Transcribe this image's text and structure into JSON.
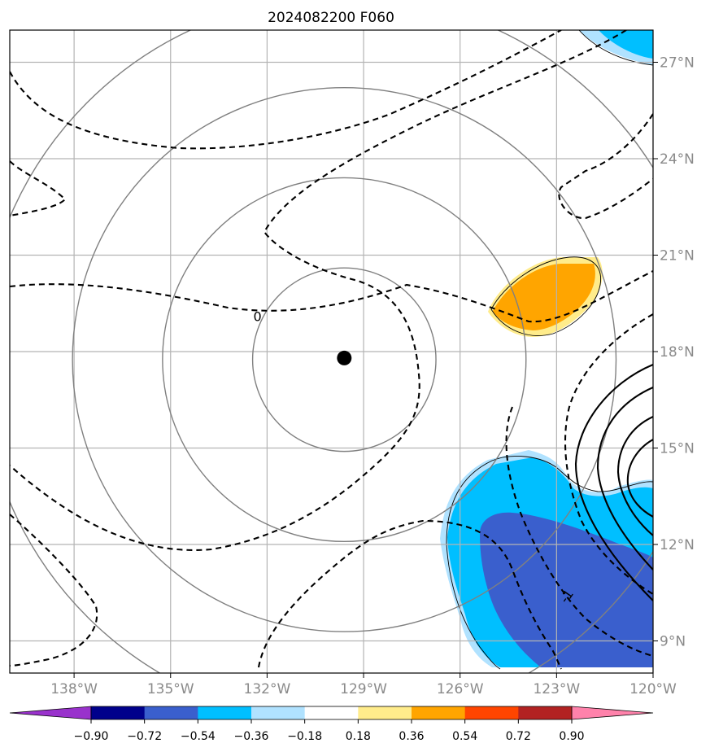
{
  "title": "2024082200 F060",
  "map": {
    "lon_range": [
      -140.0,
      -120.0
    ],
    "lat_range": [
      8.0,
      28.0
    ],
    "lon_ticks": [
      {
        "value": -138,
        "label": "138°W"
      },
      {
        "value": -135,
        "label": "135°W"
      },
      {
        "value": -132,
        "label": "132°W"
      },
      {
        "value": -129,
        "label": "129°W"
      },
      {
        "value": -126,
        "label": "126°W"
      },
      {
        "value": -123,
        "label": "123°W"
      },
      {
        "value": -120,
        "label": "120°W"
      }
    ],
    "lat_ticks": [
      {
        "value": 9,
        "label": "9°N"
      },
      {
        "value": 12,
        "label": "12°N"
      },
      {
        "value": 15,
        "label": "15°N"
      },
      {
        "value": 18,
        "label": "18°N"
      },
      {
        "value": 21,
        "label": "21°N"
      },
      {
        "value": 24,
        "label": "24°N"
      },
      {
        "value": 27,
        "label": "27°N"
      }
    ],
    "grid": true,
    "center_marker": {
      "lon": -129.6,
      "lat": 17.8
    },
    "range_rings_deg": [
      2.85,
      5.65,
      8.45,
      11.3
    ],
    "contour_labels": [
      {
        "text": "0",
        "lon": -132.3,
        "lat": 19.1
      },
      {
        "text": "-1",
        "lon": -122.7,
        "lat": 10.4
      }
    ]
  },
  "colorbar": {
    "levels": [
      "−0.90",
      "−0.72",
      "−0.54",
      "−0.36",
      "−0.18",
      "0.18",
      "0.36",
      "0.54",
      "0.72",
      "0.90"
    ],
    "colors": [
      "#9932cc",
      "#00008b",
      "#3a5fcd",
      "#00bfff",
      "#b0e2ff",
      "#ffffff",
      "#ffec8b",
      "#ffa500",
      "#ff4500",
      "#b22222",
      "#ff82ab"
    ],
    "extend": "both"
  }
}
